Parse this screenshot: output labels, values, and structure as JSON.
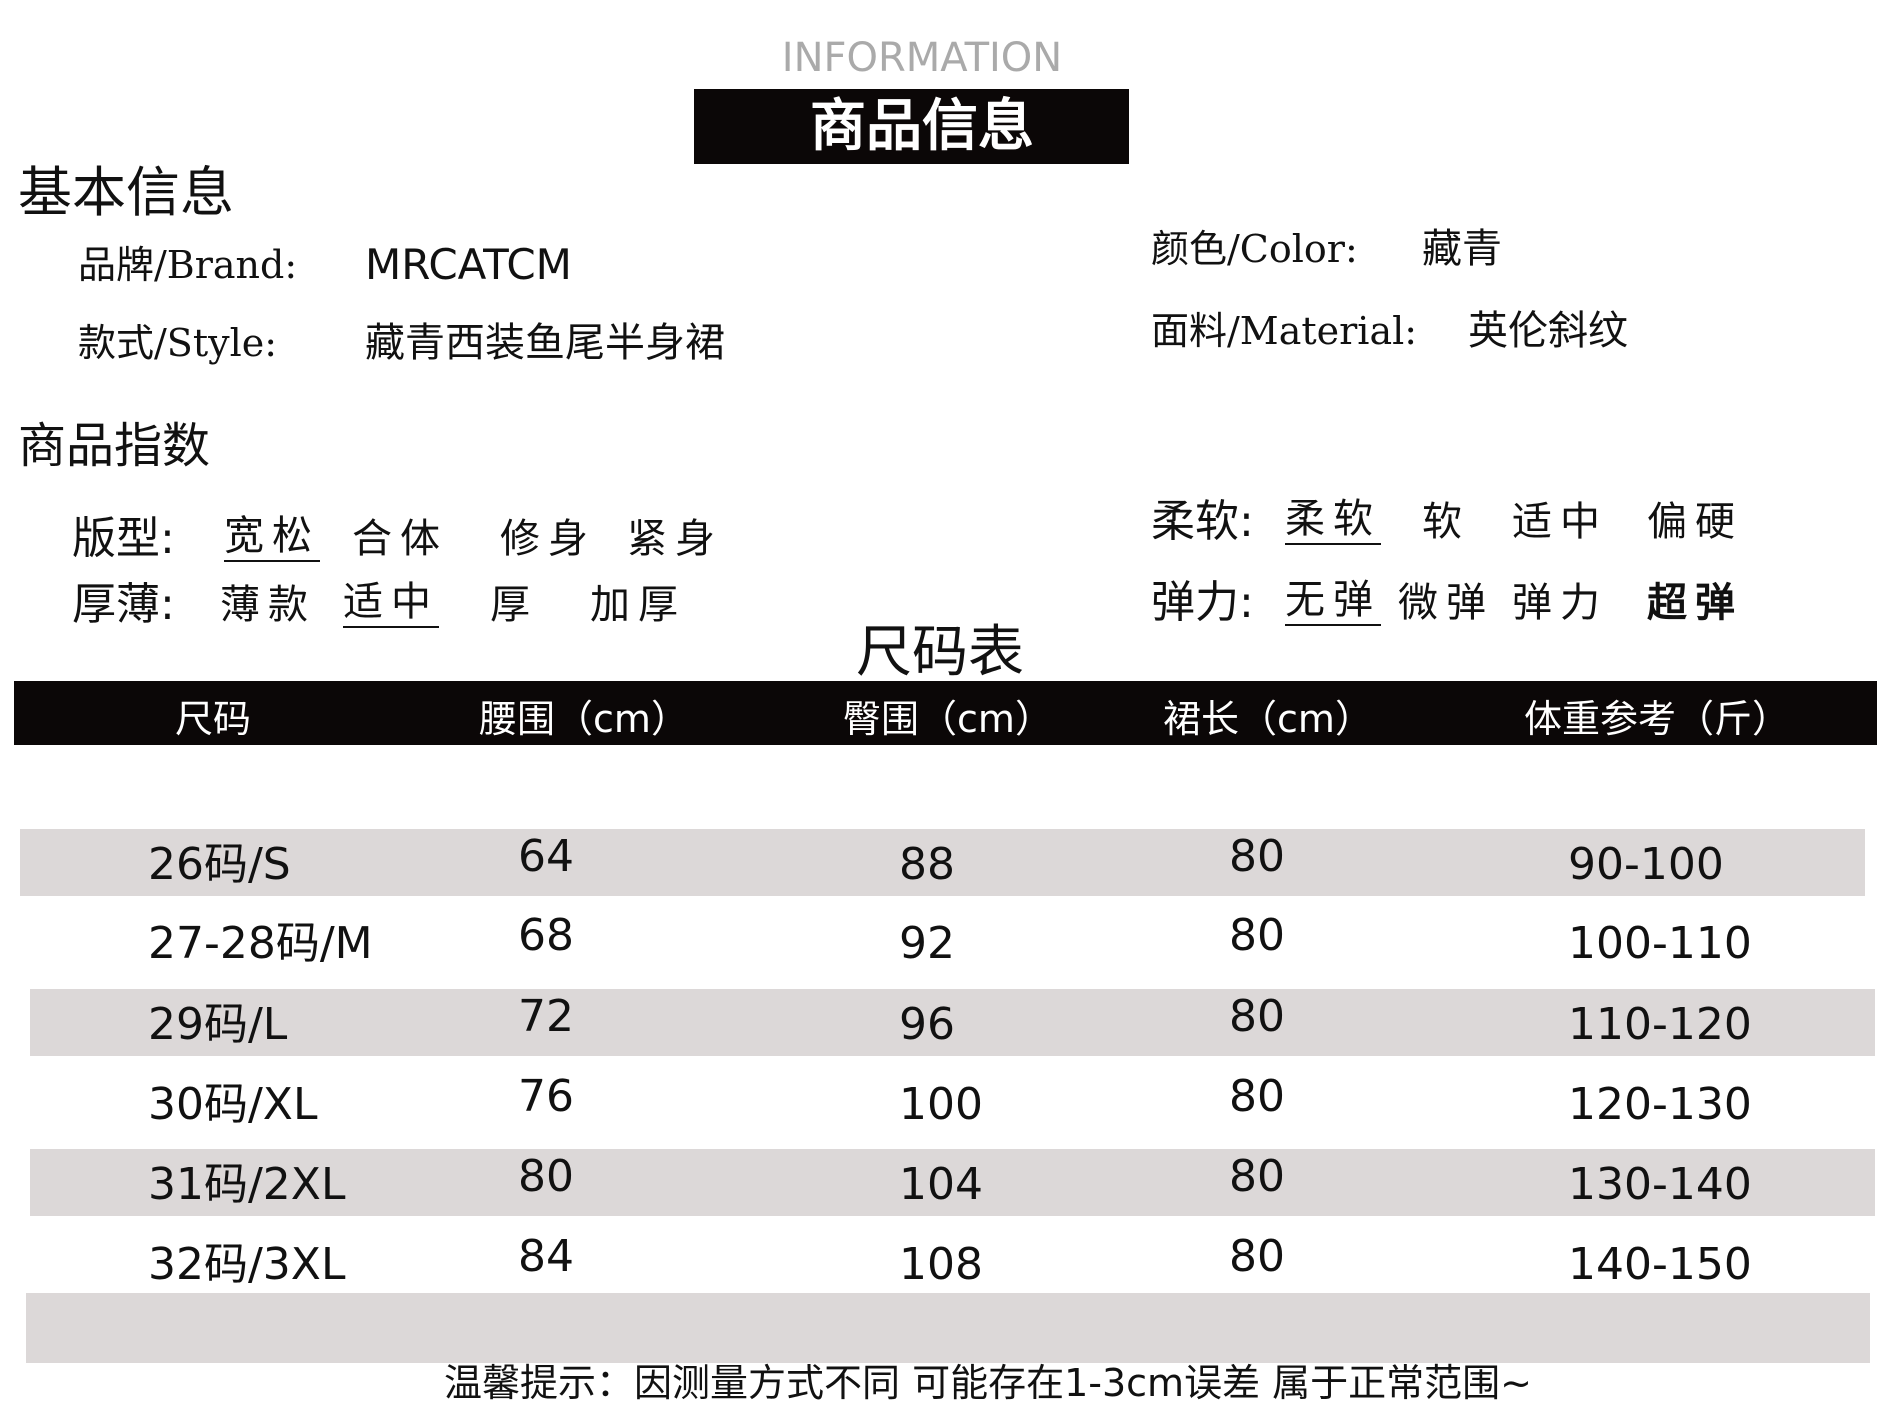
{
  "header": {
    "subtitle": "INFORMATION",
    "title": "商品信息"
  },
  "basic_info": {
    "heading": "基本信息",
    "brand": {
      "label": "品牌/Brand:",
      "value": "MRCATCM"
    },
    "style": {
      "label": "款式/Style:",
      "value": "藏青西装鱼尾半身裙"
    },
    "color": {
      "label": "颜色/Color:",
      "value": "藏青"
    },
    "material": {
      "label": "面料/Material:",
      "value": "英伦斜纹"
    }
  },
  "product_index": {
    "heading": "商品指数",
    "fit": {
      "label": "版型:",
      "options": [
        "宽松",
        "合体",
        "修身",
        "紧身"
      ],
      "selected": 0
    },
    "thickness": {
      "label": "厚薄:",
      "options": [
        "薄款",
        "适中",
        "厚",
        "加厚"
      ],
      "selected": 1
    },
    "softness": {
      "label": "柔软:",
      "options": [
        "柔软",
        "软",
        "适中",
        "偏硬"
      ],
      "selected": 0
    },
    "elasticity": {
      "label": "弹力:",
      "options": [
        "无弹",
        "微弹",
        "弹力",
        "超弹"
      ],
      "selected": 0
    }
  },
  "size_table": {
    "title": "尺码表",
    "headers": [
      "尺码",
      "腰围（cm）",
      "臀围（cm）",
      "裙长（cm）",
      "体重参考（斤）"
    ],
    "rows": [
      [
        "26码/S",
        "64",
        "88",
        "80",
        "90-100"
      ],
      [
        "27-28码/M",
        "68",
        "92",
        "80",
        "100-110"
      ],
      [
        "29码/L",
        "72",
        "96",
        "80",
        "110-120"
      ],
      [
        "30码/XL",
        "76",
        "100",
        "80",
        "120-130"
      ],
      [
        "31码/2XL",
        "80",
        "104",
        "80",
        "130-140"
      ],
      [
        "32码/3XL",
        "84",
        "108",
        "80",
        "140-150"
      ]
    ]
  },
  "note": "温馨提示：因测量方式不同 可能存在1-3cm误差 属于正常范围~"
}
